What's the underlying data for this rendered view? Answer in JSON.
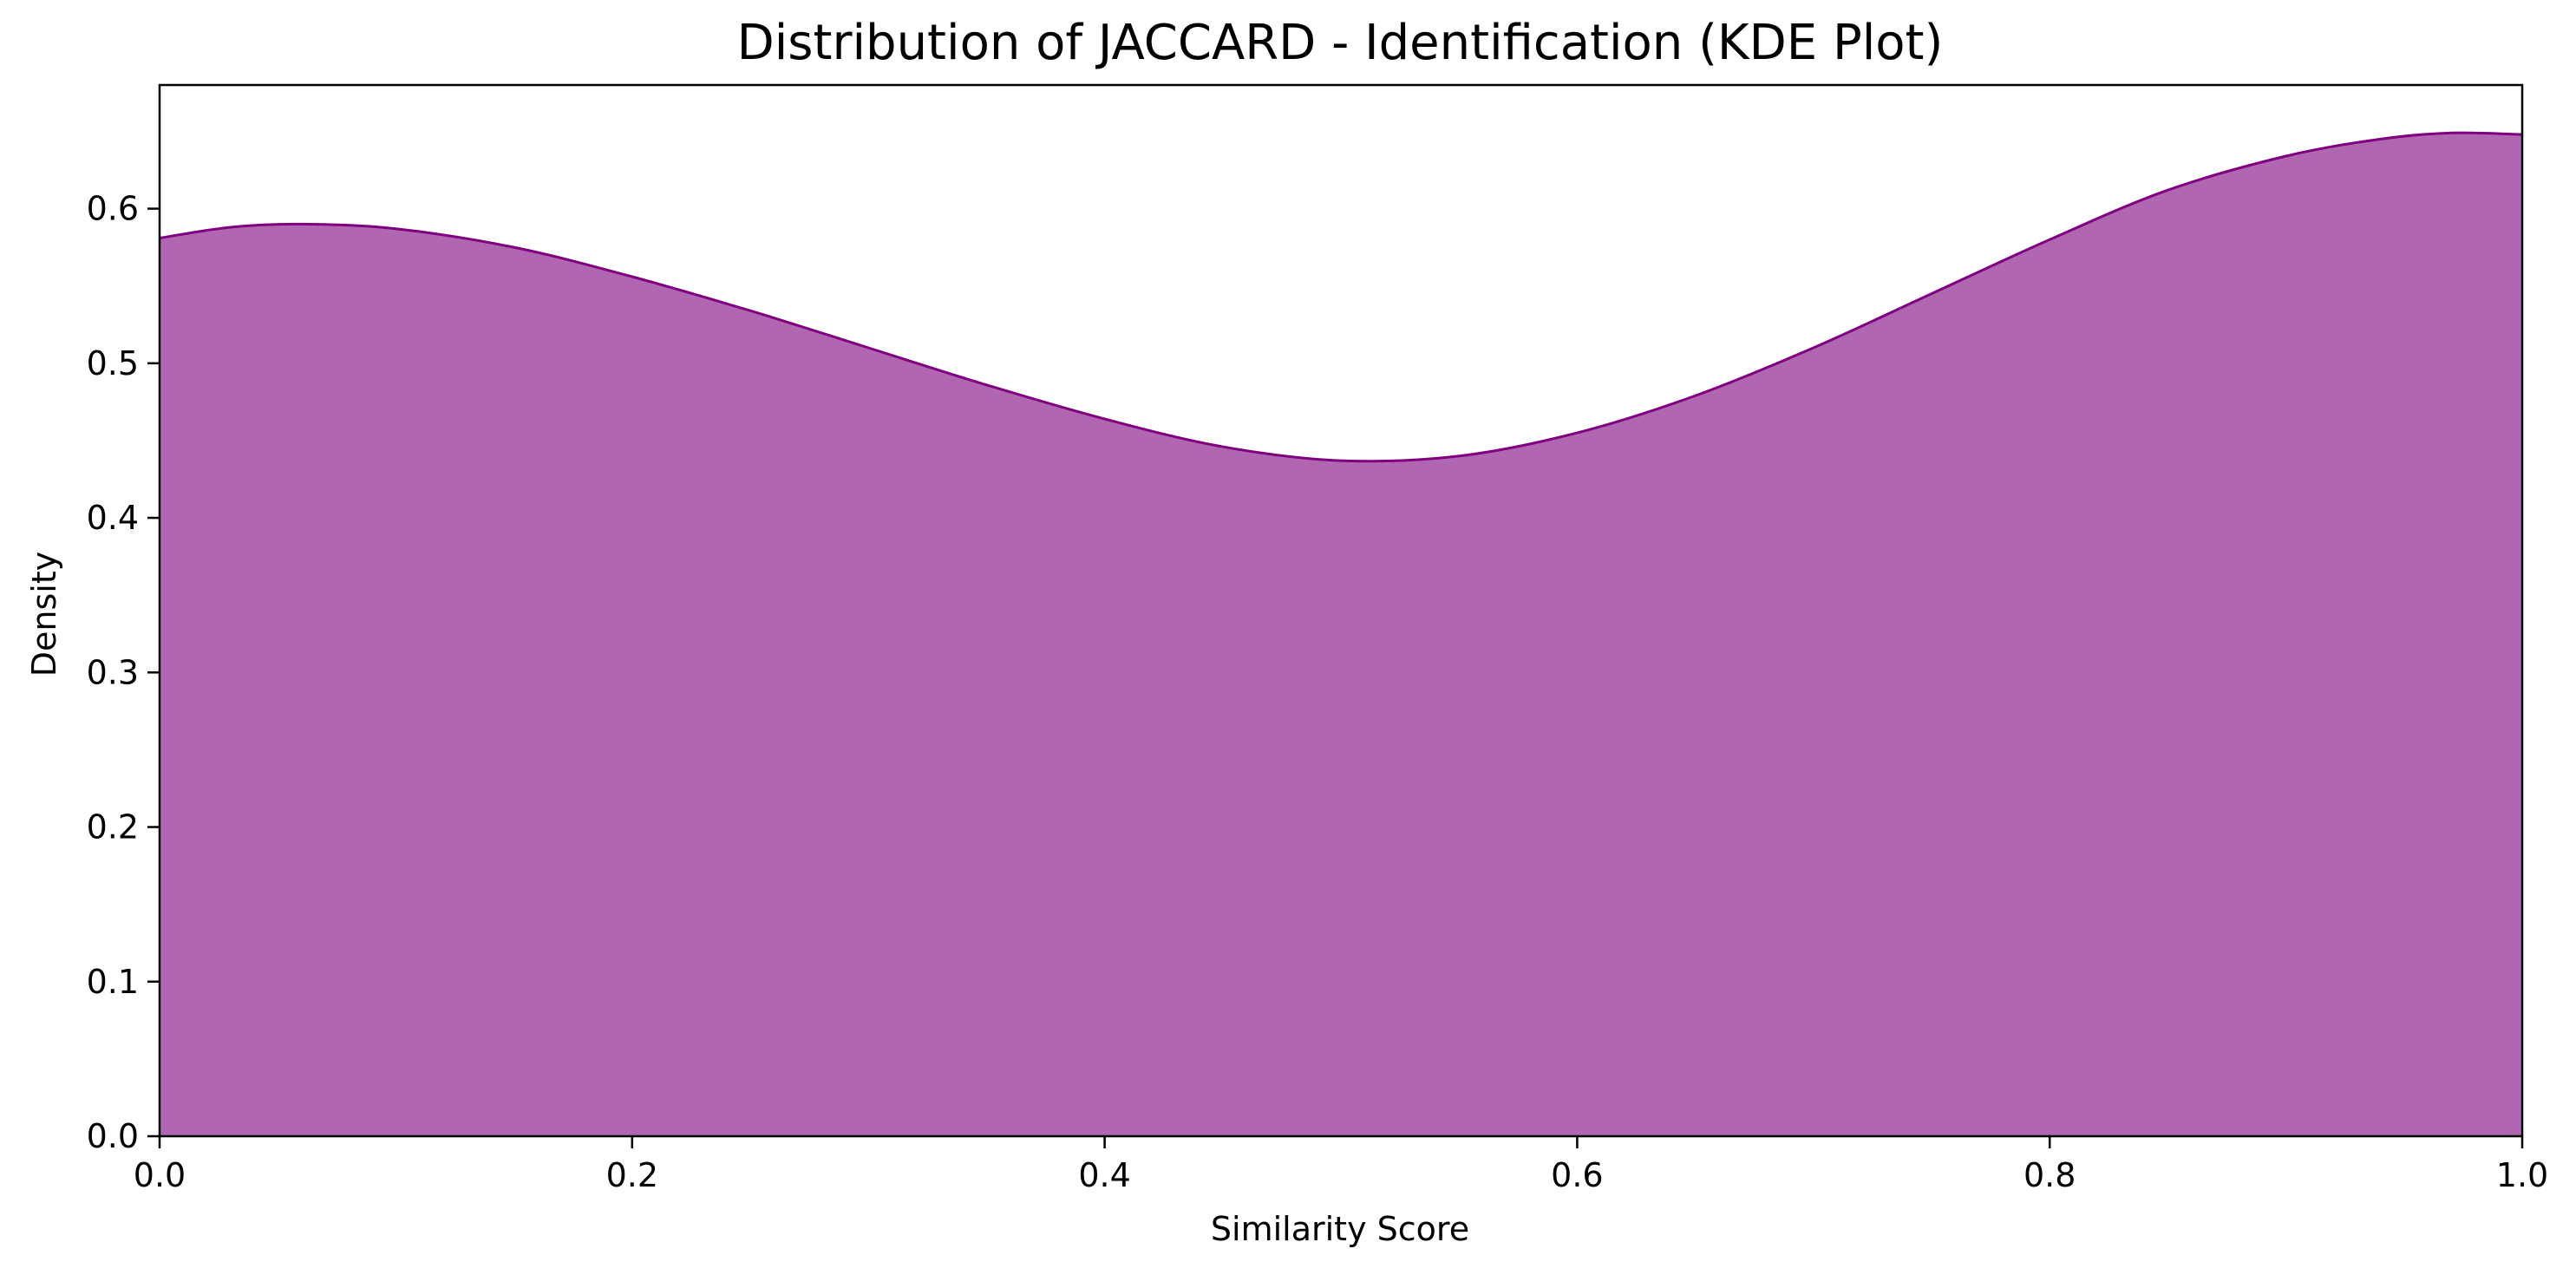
{
  "chart_data": {
    "type": "area",
    "title": "Distribution of JACCARD - Identification (KDE Plot)",
    "xlabel": "Similarity Score",
    "ylabel": "Density",
    "xlim": [
      0.0,
      1.0
    ],
    "ylim": [
      0.0,
      0.68
    ],
    "x_ticks": [
      "0.0",
      "0.2",
      "0.4",
      "0.6",
      "0.8",
      "1.0"
    ],
    "y_ticks": [
      "0.0",
      "0.1",
      "0.2",
      "0.3",
      "0.4",
      "0.5",
      "0.6"
    ],
    "grid": false,
    "legend": "none",
    "series": [
      {
        "color_line": "#800080",
        "color_fill": "#b166b1",
        "points": [
          [
            0.0,
            0.581
          ],
          [
            0.03,
            0.588
          ],
          [
            0.06,
            0.59
          ],
          [
            0.1,
            0.587
          ],
          [
            0.15,
            0.575
          ],
          [
            0.2,
            0.556
          ],
          [
            0.25,
            0.534
          ],
          [
            0.3,
            0.51
          ],
          [
            0.35,
            0.486
          ],
          [
            0.4,
            0.464
          ],
          [
            0.45,
            0.446
          ],
          [
            0.5,
            0.437
          ],
          [
            0.55,
            0.44
          ],
          [
            0.6,
            0.455
          ],
          [
            0.65,
            0.479
          ],
          [
            0.7,
            0.51
          ],
          [
            0.75,
            0.545
          ],
          [
            0.8,
            0.58
          ],
          [
            0.85,
            0.612
          ],
          [
            0.9,
            0.634
          ],
          [
            0.94,
            0.645
          ],
          [
            0.97,
            0.649
          ],
          [
            1.0,
            0.648
          ]
        ]
      }
    ]
  }
}
